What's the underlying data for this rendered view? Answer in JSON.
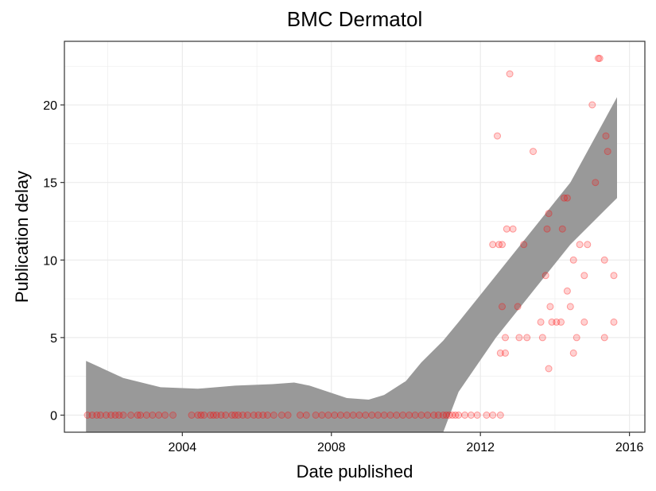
{
  "chart_data": {
    "type": "scatter",
    "title": "BMC Dermatol",
    "xlabel": "Date published",
    "ylabel": "Publication delay",
    "xlim": [
      "2000-11-01",
      "2016-05-31"
    ],
    "ylim": [
      -1.1,
      24.1
    ],
    "x_ticks": [
      "2004",
      "2008",
      "2012",
      "2016"
    ],
    "y_ticks": [
      "0",
      "5",
      "10",
      "15",
      "20"
    ],
    "grid": true,
    "legend": "none",
    "colors": {
      "points": "#ff0000",
      "ribbon": "#999999",
      "grid": "#ebebeb",
      "border": "#333333"
    },
    "series": [
      {
        "points": [
          [
            "2001-06-15",
            0
          ],
          [
            "2001-08-01",
            0
          ],
          [
            "2001-09-15",
            0
          ],
          [
            "2001-10-20",
            0
          ],
          [
            "2001-12-15",
            0
          ],
          [
            "2002-02-01",
            0
          ],
          [
            "2002-03-15",
            0
          ],
          [
            "2002-04-20",
            0
          ],
          [
            "2002-06-01",
            0
          ],
          [
            "2002-08-15",
            0
          ],
          [
            "2002-10-20",
            0
          ],
          [
            "2002-11-15",
            0
          ],
          [
            "2003-01-15",
            0
          ],
          [
            "2003-03-15",
            0
          ],
          [
            "2003-05-15",
            0
          ],
          [
            "2003-07-15",
            0
          ],
          [
            "2003-10-01",
            0
          ],
          [
            "2004-04-01",
            0
          ],
          [
            "2004-06-01",
            0
          ],
          [
            "2004-07-01",
            0
          ],
          [
            "2004-08-01",
            0
          ],
          [
            "2004-10-01",
            0
          ],
          [
            "2004-11-01",
            0
          ],
          [
            "2004-12-01",
            0
          ],
          [
            "2005-01-15",
            0
          ],
          [
            "2005-03-01",
            0
          ],
          [
            "2005-05-01",
            0
          ],
          [
            "2005-06-01",
            0
          ],
          [
            "2005-07-01",
            0
          ],
          [
            "2005-08-15",
            0
          ],
          [
            "2005-10-01",
            0
          ],
          [
            "2005-12-01",
            0
          ],
          [
            "2006-01-15",
            0
          ],
          [
            "2006-03-01",
            0
          ],
          [
            "2006-04-15",
            0
          ],
          [
            "2006-06-15",
            0
          ],
          [
            "2006-09-01",
            0
          ],
          [
            "2006-11-01",
            0
          ],
          [
            "2007-03-01",
            0
          ],
          [
            "2007-05-01",
            0
          ],
          [
            "2007-08-01",
            0
          ],
          [
            "2007-10-01",
            0
          ],
          [
            "2007-12-01",
            0
          ],
          [
            "2008-02-01",
            0
          ],
          [
            "2008-04-01",
            0
          ],
          [
            "2008-06-01",
            0
          ],
          [
            "2008-08-01",
            0
          ],
          [
            "2008-10-01",
            0
          ],
          [
            "2008-12-01",
            0
          ],
          [
            "2009-02-01",
            0
          ],
          [
            "2009-04-01",
            0
          ],
          [
            "2009-06-01",
            0
          ],
          [
            "2009-08-01",
            0
          ],
          [
            "2009-10-01",
            0
          ],
          [
            "2009-12-01",
            0
          ],
          [
            "2010-02-01",
            0
          ],
          [
            "2010-04-01",
            0
          ],
          [
            "2010-06-01",
            0
          ],
          [
            "2010-08-01",
            0
          ],
          [
            "2010-10-01",
            0
          ],
          [
            "2010-11-15",
            0
          ],
          [
            "2011-01-01",
            0
          ],
          [
            "2011-02-01",
            0
          ],
          [
            "2011-03-01",
            0
          ],
          [
            "2011-04-01",
            0
          ],
          [
            "2011-05-01",
            0
          ],
          [
            "2011-06-01",
            0
          ],
          [
            "2011-08-01",
            0
          ],
          [
            "2011-10-01",
            0
          ],
          [
            "2011-12-01",
            0
          ],
          [
            "2012-03-01",
            0
          ],
          [
            "2012-05-01",
            0
          ],
          [
            "2012-07-15",
            0
          ],
          [
            "2012-05-01",
            11
          ],
          [
            "2012-07-01",
            11
          ],
          [
            "2012-08-01",
            11
          ],
          [
            "2012-06-15",
            18
          ],
          [
            "2012-07-15",
            4
          ],
          [
            "2012-09-01",
            4
          ],
          [
            "2012-08-01",
            7
          ],
          [
            "2012-09-01",
            5
          ],
          [
            "2012-09-15",
            12
          ],
          [
            "2012-10-15",
            22
          ],
          [
            "2012-11-15",
            12
          ],
          [
            "2013-01-01",
            7
          ],
          [
            "2013-01-15",
            5
          ],
          [
            "2013-03-01",
            11
          ],
          [
            "2013-04-01",
            5
          ],
          [
            "2013-06-01",
            17
          ],
          [
            "2013-09-01",
            5
          ],
          [
            "2013-10-01",
            9
          ],
          [
            "2013-08-15",
            6
          ],
          [
            "2013-10-15",
            12
          ],
          [
            "2013-11-01",
            13
          ],
          [
            "2013-11-15",
            7
          ],
          [
            "2013-11-01",
            3
          ],
          [
            "2013-12-01",
            6
          ],
          [
            "2014-01-15",
            6
          ],
          [
            "2014-03-01",
            6
          ],
          [
            "2014-03-15",
            12
          ],
          [
            "2014-04-01",
            14
          ],
          [
            "2014-05-01",
            14
          ],
          [
            "2014-05-01",
            8
          ],
          [
            "2014-06-01",
            7
          ],
          [
            "2014-07-01",
            10
          ],
          [
            "2014-07-01",
            4
          ],
          [
            "2014-08-01",
            5
          ],
          [
            "2014-09-01",
            11
          ],
          [
            "2014-10-15",
            6
          ],
          [
            "2014-10-15",
            9
          ],
          [
            "2014-11-15",
            11
          ],
          [
            "2015-01-01",
            20
          ],
          [
            "2015-02-01",
            15
          ],
          [
            "2015-03-01",
            23
          ],
          [
            "2015-03-15",
            23
          ],
          [
            "2015-05-01",
            10
          ],
          [
            "2015-05-01",
            5
          ],
          [
            "2015-05-15",
            18
          ],
          [
            "2015-06-01",
            17
          ],
          [
            "2015-08-01",
            9
          ],
          [
            "2015-08-01",
            6
          ]
        ]
      }
    ],
    "ribbon": {
      "x": [
        "2001-06-01",
        "2002-06-01",
        "2003-06-01",
        "2004-06-01",
        "2005-06-01",
        "2006-06-01",
        "2007-01-01",
        "2007-06-01",
        "2008-06-01",
        "2009-01-01",
        "2009-06-01",
        "2010-01-01",
        "2010-06-01",
        "2011-01-01",
        "2011-06-01",
        "2012-06-01",
        "2013-06-01",
        "2014-06-01",
        "2015-09-01"
      ],
      "upper": [
        3.5,
        2.4,
        1.8,
        1.7,
        1.9,
        2.0,
        2.1,
        1.9,
        1.1,
        1.0,
        1.3,
        2.2,
        3.4,
        4.8,
        6.0,
        9.0,
        12.0,
        15.0,
        20.5
      ],
      "lower": [
        -1.1,
        -1.1,
        -1.1,
        -1.1,
        -1.1,
        -1.1,
        -1.1,
        -1.1,
        -1.1,
        -1.1,
        -1.1,
        -1.1,
        -1.1,
        -1.1,
        1.5,
        5.0,
        8.0,
        11.0,
        14.0
      ]
    }
  }
}
